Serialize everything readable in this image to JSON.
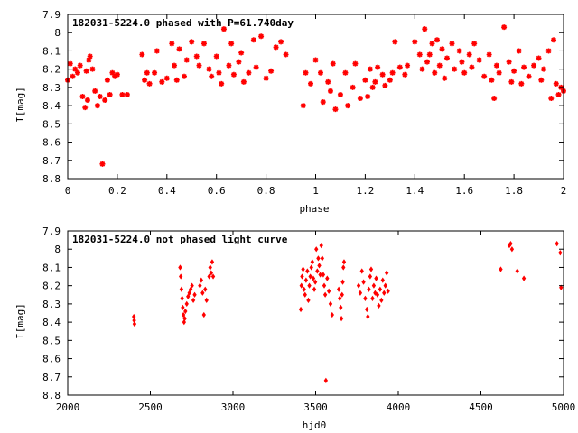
{
  "chart_data": [
    {
      "type": "scatter",
      "title": "182031-5224.0 phased with P=61.740day",
      "xlabel": "phase",
      "ylabel": "I[mag]",
      "xlim": [
        0,
        2
      ],
      "ylim": [
        7.9,
        8.8
      ],
      "y_inverted": true,
      "grid": false,
      "marker": "asterisk",
      "color": "#ff0000",
      "xticks": [
        0,
        0.2,
        0.4,
        0.6,
        0.8,
        1,
        1.2,
        1.4,
        1.6,
        1.8,
        2
      ],
      "xtick_labels": [
        "0",
        "0.2",
        "0.4",
        "0.6",
        "0.8",
        "1",
        "1.2",
        "1.4",
        "1.6",
        "1.8",
        "2"
      ],
      "yticks": [
        7.9,
        8,
        8.1,
        8.2,
        8.3,
        8.4,
        8.5,
        8.6,
        8.7,
        8.8
      ],
      "ytick_labels": [
        "7.9",
        "8",
        "8.1",
        "8.2",
        "8.3",
        "8.4",
        "8.5",
        "8.6",
        "8.7",
        "8.8"
      ],
      "points": [
        [
          0.0,
          8.26
        ],
        [
          0.01,
          8.17
        ],
        [
          0.02,
          8.24
        ],
        [
          0.03,
          8.2
        ],
        [
          0.04,
          8.22
        ],
        [
          0.05,
          8.18
        ],
        [
          0.06,
          8.35
        ],
        [
          0.07,
          8.41
        ],
        [
          0.075,
          8.21
        ],
        [
          0.08,
          8.37
        ],
        [
          0.085,
          8.15
        ],
        [
          0.09,
          8.13
        ],
        [
          0.1,
          8.2
        ],
        [
          0.11,
          8.32
        ],
        [
          0.12,
          8.4
        ],
        [
          0.13,
          8.35
        ],
        [
          0.14,
          8.72
        ],
        [
          0.15,
          8.37
        ],
        [
          0.16,
          8.26
        ],
        [
          0.17,
          8.34
        ],
        [
          0.18,
          8.22
        ],
        [
          0.19,
          8.24
        ],
        [
          0.2,
          8.23
        ],
        [
          0.22,
          8.34
        ],
        [
          0.24,
          8.34
        ],
        [
          0.3,
          8.12
        ],
        [
          0.31,
          8.26
        ],
        [
          0.32,
          8.22
        ],
        [
          0.33,
          8.28
        ],
        [
          0.35,
          8.22
        ],
        [
          0.36,
          8.1
        ],
        [
          0.38,
          8.27
        ],
        [
          0.4,
          8.25
        ],
        [
          0.42,
          8.06
        ],
        [
          0.43,
          8.18
        ],
        [
          0.44,
          8.26
        ],
        [
          0.45,
          8.09
        ],
        [
          0.47,
          8.24
        ],
        [
          0.48,
          8.15
        ],
        [
          0.5,
          8.05
        ],
        [
          0.52,
          8.13
        ],
        [
          0.53,
          8.18
        ],
        [
          0.55,
          8.06
        ],
        [
          0.57,
          8.2
        ],
        [
          0.58,
          8.24
        ],
        [
          0.6,
          8.13
        ],
        [
          0.61,
          8.22
        ],
        [
          0.62,
          8.28
        ],
        [
          0.63,
          7.98
        ],
        [
          0.65,
          8.18
        ],
        [
          0.66,
          8.06
        ],
        [
          0.67,
          8.23
        ],
        [
          0.69,
          8.16
        ],
        [
          0.7,
          8.11
        ],
        [
          0.71,
          8.27
        ],
        [
          0.73,
          8.22
        ],
        [
          0.75,
          8.04
        ],
        [
          0.76,
          8.19
        ],
        [
          0.78,
          8.02
        ],
        [
          0.8,
          8.25
        ],
        [
          0.82,
          8.21
        ],
        [
          0.84,
          8.08
        ],
        [
          0.86,
          8.05
        ],
        [
          0.88,
          8.12
        ],
        [
          0.95,
          8.4
        ],
        [
          0.96,
          8.22
        ],
        [
          0.98,
          8.28
        ],
        [
          1.0,
          8.15
        ],
        [
          1.02,
          8.22
        ],
        [
          1.03,
          8.38
        ],
        [
          1.05,
          8.27
        ],
        [
          1.06,
          8.32
        ],
        [
          1.07,
          8.17
        ],
        [
          1.08,
          8.42
        ],
        [
          1.1,
          8.34
        ],
        [
          1.12,
          8.22
        ],
        [
          1.13,
          8.4
        ],
        [
          1.15,
          8.3
        ],
        [
          1.16,
          8.17
        ],
        [
          1.18,
          8.36
        ],
        [
          1.2,
          8.26
        ],
        [
          1.21,
          8.35
        ],
        [
          1.22,
          8.2
        ],
        [
          1.23,
          8.3
        ],
        [
          1.24,
          8.27
        ],
        [
          1.25,
          8.19
        ],
        [
          1.27,
          8.23
        ],
        [
          1.28,
          8.29
        ],
        [
          1.3,
          8.26
        ],
        [
          1.31,
          8.22
        ],
        [
          1.32,
          8.05
        ],
        [
          1.34,
          8.19
        ],
        [
          1.36,
          8.23
        ],
        [
          1.37,
          8.18
        ],
        [
          1.4,
          8.05
        ],
        [
          1.42,
          8.12
        ],
        [
          1.43,
          8.2
        ],
        [
          1.44,
          7.98
        ],
        [
          1.45,
          8.16
        ],
        [
          1.46,
          8.12
        ],
        [
          1.47,
          8.06
        ],
        [
          1.48,
          8.22
        ],
        [
          1.49,
          8.04
        ],
        [
          1.5,
          8.18
        ],
        [
          1.51,
          8.09
        ],
        [
          1.52,
          8.25
        ],
        [
          1.53,
          8.14
        ],
        [
          1.55,
          8.06
        ],
        [
          1.56,
          8.2
        ],
        [
          1.58,
          8.1
        ],
        [
          1.59,
          8.16
        ],
        [
          1.6,
          8.22
        ],
        [
          1.62,
          8.12
        ],
        [
          1.63,
          8.19
        ],
        [
          1.64,
          8.06
        ],
        [
          1.66,
          8.15
        ],
        [
          1.68,
          8.24
        ],
        [
          1.7,
          8.12
        ],
        [
          1.71,
          8.26
        ],
        [
          1.72,
          8.36
        ],
        [
          1.73,
          8.18
        ],
        [
          1.74,
          8.22
        ],
        [
          1.76,
          7.97
        ],
        [
          1.78,
          8.16
        ],
        [
          1.79,
          8.27
        ],
        [
          1.8,
          8.21
        ],
        [
          1.82,
          8.1
        ],
        [
          1.83,
          8.28
        ],
        [
          1.84,
          8.19
        ],
        [
          1.86,
          8.24
        ],
        [
          1.88,
          8.18
        ],
        [
          1.9,
          8.14
        ],
        [
          1.91,
          8.26
        ],
        [
          1.92,
          8.2
        ],
        [
          1.94,
          8.1
        ],
        [
          1.95,
          8.36
        ],
        [
          1.96,
          8.04
        ],
        [
          1.97,
          8.28
        ],
        [
          1.98,
          8.34
        ],
        [
          1.99,
          8.3
        ],
        [
          2.0,
          8.32
        ]
      ]
    },
    {
      "type": "scatter",
      "title": "182031-5224.0 not phased light curve",
      "xlabel": "hjd0",
      "ylabel": "I[mag]",
      "xlim": [
        2000,
        5000
      ],
      "ylim": [
        7.9,
        8.8
      ],
      "y_inverted": true,
      "grid": false,
      "marker": "diamond",
      "color": "#ff0000",
      "xticks": [
        2000,
        2500,
        3000,
        3500,
        4000,
        4500,
        5000
      ],
      "xtick_labels": [
        "2000",
        "2500",
        "3000",
        "3500",
        "4000",
        "4500",
        "5000"
      ],
      "yticks": [
        7.9,
        8,
        8.1,
        8.2,
        8.3,
        8.4,
        8.5,
        8.6,
        8.7,
        8.8
      ],
      "ytick_labels": [
        "7.9",
        "8",
        "8.1",
        "8.2",
        "8.3",
        "8.4",
        "8.5",
        "8.6",
        "8.7",
        "8.8"
      ],
      "points": [
        [
          2400,
          8.37
        ],
        [
          2402,
          8.39
        ],
        [
          2404,
          8.41
        ],
        [
          2680,
          8.1
        ],
        [
          2684,
          8.15
        ],
        [
          2688,
          8.22
        ],
        [
          2692,
          8.27
        ],
        [
          2696,
          8.32
        ],
        [
          2700,
          8.36
        ],
        [
          2704,
          8.4
        ],
        [
          2708,
          8.38
        ],
        [
          2712,
          8.34
        ],
        [
          2720,
          8.3
        ],
        [
          2728,
          8.26
        ],
        [
          2736,
          8.24
        ],
        [
          2744,
          8.22
        ],
        [
          2752,
          8.2
        ],
        [
          2760,
          8.28
        ],
        [
          2768,
          8.25
        ],
        [
          2800,
          8.2
        ],
        [
          2808,
          8.17
        ],
        [
          2816,
          8.24
        ],
        [
          2824,
          8.36
        ],
        [
          2832,
          8.22
        ],
        [
          2840,
          8.28
        ],
        [
          2856,
          8.15
        ],
        [
          2862,
          8.1
        ],
        [
          2868,
          8.13
        ],
        [
          2874,
          8.07
        ],
        [
          2880,
          8.15
        ],
        [
          3410,
          8.33
        ],
        [
          3414,
          8.2
        ],
        [
          3418,
          8.15
        ],
        [
          3424,
          8.11
        ],
        [
          3430,
          8.22
        ],
        [
          3436,
          8.25
        ],
        [
          3442,
          8.17
        ],
        [
          3450,
          8.12
        ],
        [
          3456,
          8.28
        ],
        [
          3462,
          8.2
        ],
        [
          3468,
          8.15
        ],
        [
          3474,
          8.1
        ],
        [
          3480,
          8.07
        ],
        [
          3486,
          8.16
        ],
        [
          3492,
          8.22
        ],
        [
          3498,
          8.18
        ],
        [
          3504,
          8.0
        ],
        [
          3510,
          8.12
        ],
        [
          3516,
          8.05
        ],
        [
          3522,
          8.09
        ],
        [
          3528,
          8.14
        ],
        [
          3534,
          7.98
        ],
        [
          3540,
          8.05
        ],
        [
          3546,
          8.14
        ],
        [
          3552,
          8.2
        ],
        [
          3558,
          8.25
        ],
        [
          3562,
          8.72
        ],
        [
          3570,
          8.16
        ],
        [
          3580,
          8.23
        ],
        [
          3590,
          8.3
        ],
        [
          3600,
          8.36
        ],
        [
          3640,
          8.22
        ],
        [
          3646,
          8.27
        ],
        [
          3652,
          8.32
        ],
        [
          3656,
          8.38
        ],
        [
          3660,
          8.25
        ],
        [
          3664,
          8.18
        ],
        [
          3668,
          8.1
        ],
        [
          3672,
          8.07
        ],
        [
          3760,
          8.2
        ],
        [
          3770,
          8.24
        ],
        [
          3780,
          8.12
        ],
        [
          3790,
          8.18
        ],
        [
          3800,
          8.27
        ],
        [
          3810,
          8.33
        ],
        [
          3816,
          8.37
        ],
        [
          3822,
          8.22
        ],
        [
          3830,
          8.15
        ],
        [
          3836,
          8.11
        ],
        [
          3844,
          8.27
        ],
        [
          3852,
          8.2
        ],
        [
          3860,
          8.24
        ],
        [
          3866,
          8.16
        ],
        [
          3874,
          8.25
        ],
        [
          3882,
          8.31
        ],
        [
          3890,
          8.22
        ],
        [
          3898,
          8.28
        ],
        [
          3906,
          8.17
        ],
        [
          3914,
          8.24
        ],
        [
          3922,
          8.2
        ],
        [
          3930,
          8.13
        ],
        [
          3938,
          8.23
        ],
        [
          4620,
          8.11
        ],
        [
          4672,
          7.98
        ],
        [
          4680,
          7.97
        ],
        [
          4688,
          8.0
        ],
        [
          4720,
          8.12
        ],
        [
          4760,
          8.16
        ],
        [
          4960,
          7.97
        ],
        [
          4980,
          8.02
        ],
        [
          4985,
          8.21
        ]
      ]
    }
  ]
}
